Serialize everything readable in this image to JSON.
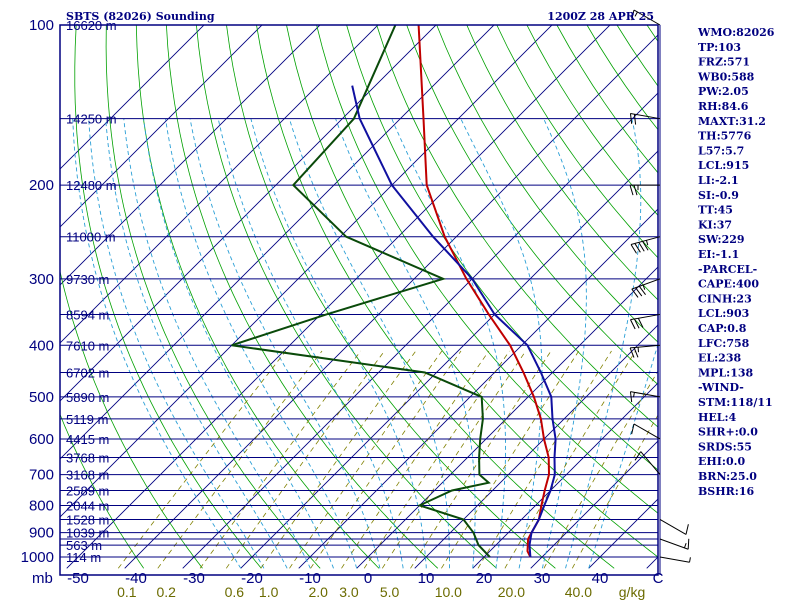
{
  "header": {
    "station": "SBTS (82026) Sounding",
    "valid_time": "1200Z 28 APR 25"
  },
  "chart_data": {
    "type": "skew-t log-p sounding",
    "pressure_levels": [
      100,
      150,
      200,
      250,
      300,
      350,
      400,
      450,
      500,
      550,
      600,
      650,
      700,
      750,
      800,
      850,
      900,
      925,
      950,
      1000
    ],
    "pressure_tick_labels": [
      "100",
      "200",
      "300",
      "400",
      "500",
      "600",
      "700",
      "800",
      "900",
      "1000"
    ],
    "pressure_unit_label": "mb",
    "heights": [
      {
        "p": 100,
        "label": "16620 m"
      },
      {
        "p": 150,
        "label": "14250 m"
      },
      {
        "p": 200,
        "label": "12480 m"
      },
      {
        "p": 250,
        "label": "11000 m"
      },
      {
        "p": 300,
        "label": "9730 m"
      },
      {
        "p": 350,
        "label": "8594 m"
      },
      {
        "p": 400,
        "label": "7610 m"
      },
      {
        "p": 450,
        "label": "6702 m"
      },
      {
        "p": 500,
        "label": "5890 m"
      },
      {
        "p": 550,
        "label": "5119 m"
      },
      {
        "p": 600,
        "label": "4415 m"
      },
      {
        "p": 650,
        "label": "3768 m"
      },
      {
        "p": 700,
        "label": "3168 m"
      },
      {
        "p": 750,
        "label": "2589 m"
      },
      {
        "p": 800,
        "label": "2044 m"
      },
      {
        "p": 850,
        "label": "1528 m"
      },
      {
        "p": 900,
        "label": "1039 m"
      },
      {
        "p": 950,
        "label": "563 m"
      },
      {
        "p": 1000,
        "label": "114 m"
      }
    ],
    "temperature_ticks": [
      -50,
      -40,
      -30,
      -20,
      -10,
      0,
      10,
      20,
      30,
      40
    ],
    "temperature_tick_labels": [
      "-50",
      "-40",
      "-30",
      "-20",
      "-10",
      "0",
      "10",
      "20",
      "30",
      "40"
    ],
    "temperature_axis_end_label": "C",
    "mixing_ratio_ticks": [
      0.1,
      0.2,
      0.6,
      1.0,
      2.0,
      3.0,
      5.0,
      10.0,
      20.0,
      40.0
    ],
    "mixing_ratio_tick_labels": [
      "0.1",
      "0.2",
      "0.6",
      "1.0",
      "2.0",
      "3.0",
      "5.0",
      "10.0",
      "20.0",
      "40.0"
    ],
    "mixing_ratio_unit": "g/kg",
    "series": [
      {
        "name": "",
        "role": "temperature",
        "color": "#c00000",
        "points": [
          [
            100,
            -83
          ],
          [
            150,
            -66
          ],
          [
            200,
            -54
          ],
          [
            250,
            -42
          ],
          [
            300,
            -31
          ],
          [
            350,
            -21
          ],
          [
            400,
            -12
          ],
          [
            450,
            -5
          ],
          [
            500,
            1
          ],
          [
            550,
            6
          ],
          [
            600,
            10
          ],
          [
            650,
            14
          ],
          [
            700,
            17
          ],
          [
            750,
            19
          ],
          [
            800,
            21
          ],
          [
            850,
            23
          ],
          [
            900,
            24
          ],
          [
            925,
            24.5
          ],
          [
            950,
            25.5
          ],
          [
            975,
            26.5
          ],
          [
            1000,
            28
          ]
        ]
      },
      {
        "name": "",
        "role": "dewpoint",
        "color": "#0a4a0a",
        "points": [
          [
            100,
            -87
          ],
          [
            150,
            -78
          ],
          [
            200,
            -77
          ],
          [
            250,
            -59
          ],
          [
            300,
            -35
          ],
          [
            350,
            -49
          ],
          [
            400,
            -60
          ],
          [
            450,
            -22
          ],
          [
            500,
            -8
          ],
          [
            550,
            -4
          ],
          [
            600,
            -1
          ],
          [
            650,
            2
          ],
          [
            700,
            5
          ],
          [
            725,
            8
          ],
          [
            750,
            3
          ],
          [
            800,
            0
          ],
          [
            850,
            10
          ],
          [
            900,
            14
          ],
          [
            950,
            17
          ],
          [
            1000,
            21
          ]
        ]
      },
      {
        "name": "",
        "role": "parcel",
        "color": "#1010a0",
        "points": [
          [
            130,
            -84
          ],
          [
            150,
            -77
          ],
          [
            200,
            -60
          ],
          [
            250,
            -44
          ],
          [
            300,
            -30
          ],
          [
            350,
            -20
          ],
          [
            400,
            -9
          ],
          [
            450,
            -2
          ],
          [
            500,
            4
          ],
          [
            550,
            8
          ],
          [
            600,
            12
          ],
          [
            650,
            15
          ],
          [
            700,
            18
          ],
          [
            750,
            20
          ],
          [
            800,
            21.5
          ],
          [
            850,
            23
          ],
          [
            900,
            24
          ],
          [
            950,
            25.8
          ],
          [
            1000,
            28
          ]
        ]
      }
    ],
    "wind_barbs": [
      {
        "p": 100,
        "dir": 300,
        "spd": 15
      },
      {
        "p": 150,
        "dir": 280,
        "spd": 20
      },
      {
        "p": 200,
        "dir": 270,
        "spd": 25
      },
      {
        "p": 250,
        "dir": 255,
        "spd": 45
      },
      {
        "p": 300,
        "dir": 250,
        "spd": 35
      },
      {
        "p": 350,
        "dir": 260,
        "spd": 30
      },
      {
        "p": 400,
        "dir": 265,
        "spd": 25
      },
      {
        "p": 500,
        "dir": 280,
        "spd": 15
      },
      {
        "p": 600,
        "dir": 300,
        "spd": 10
      },
      {
        "p": 700,
        "dir": 320,
        "spd": 10
      },
      {
        "p": 850,
        "dir": 120,
        "spd": 10
      },
      {
        "p": 925,
        "dir": 110,
        "spd": 15
      },
      {
        "p": 1000,
        "dir": 100,
        "spd": 5
      }
    ],
    "indices": [
      "WMO:82026",
      "TP:103",
      "FRZ:571",
      "WB0:588",
      "PW:2.05",
      "RH:84.6",
      "MAXT:31.2",
      "TH:5776",
      "L57:5.7",
      "LCL:915",
      "LI:-2.1",
      "SI:-0.9",
      "TT:45",
      "KI:37",
      "SW:229",
      "EI:-1.1",
      "-PARCEL-",
      "CAPE:400",
      "CINH:23",
      "LCL:903",
      "CAP:0.8",
      "LFC:758",
      "EL:238",
      "MPL:138",
      "-WIND-",
      "STM:118/11",
      "HEL:4",
      "SHR+:0.0",
      "SRDS:55",
      "EHI:0.0",
      "BRN:25.0",
      "BSHR:16"
    ],
    "colors": {
      "frame": "#000080",
      "isobar": "#000080",
      "isotherm": "#000080",
      "dry_adiabat": "#00a000",
      "moist_adiabat": "#2a9fd6",
      "mixing_ratio": "#808000",
      "temperature": "#c00000",
      "dewpoint": "#0a4a0a",
      "parcel": "#1010a0",
      "wind": "#000000"
    }
  }
}
